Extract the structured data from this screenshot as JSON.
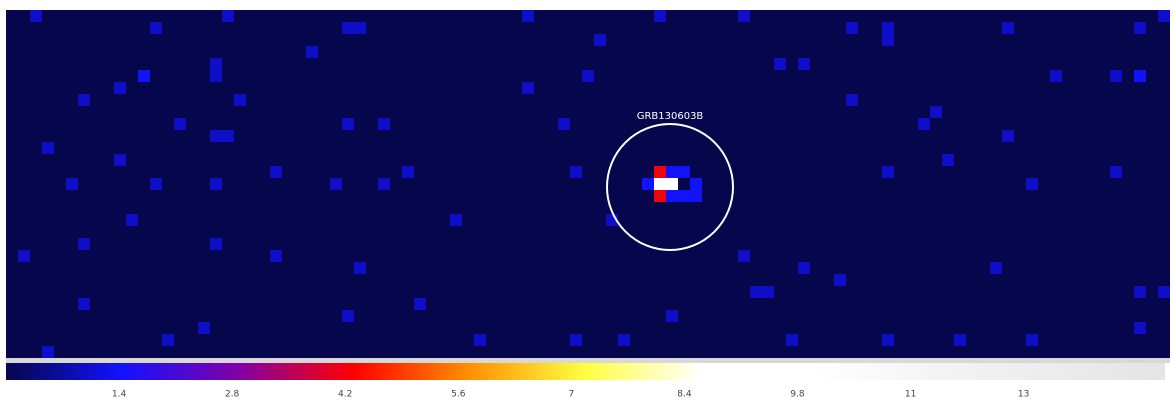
{
  "chart_data": {
    "type": "heatmap",
    "annotation": "GRB130603B",
    "colormap": [
      "#06064c",
      "#1212ff",
      "#8000a8",
      "#ff0000",
      "#ff9000",
      "#ffff40",
      "#ffffff",
      "#ffffff",
      "#f4f4f4",
      "#ececec",
      "#e4e4e4"
    ],
    "clim": [
      0,
      14.35
    ],
    "cticks": [
      1.4,
      2.8,
      4.2,
      5.6,
      7,
      8.4,
      9.8,
      {
        "value": 11.2,
        "label": "11"
      },
      {
        "value": 12.6,
        "label": "13"
      }
    ],
    "pixels": [
      [
        2,
        0,
        1
      ],
      [
        12,
        1,
        1
      ],
      [
        18,
        0,
        1
      ],
      [
        28,
        1,
        1
      ],
      [
        29,
        1,
        1
      ],
      [
        43,
        0,
        1
      ],
      [
        49,
        2,
        1
      ],
      [
        54,
        0,
        1
      ],
      [
        61,
        0,
        1
      ],
      [
        70,
        1,
        1
      ],
      [
        73,
        1,
        1
      ],
      [
        73,
        2,
        1
      ],
      [
        83,
        1,
        1
      ],
      [
        94,
        1,
        1
      ],
      [
        96,
        0,
        1
      ],
      [
        11,
        5,
        1.4
      ],
      [
        17,
        4,
        1
      ],
      [
        17,
        5,
        1
      ],
      [
        9,
        6,
        1
      ],
      [
        6,
        7,
        1
      ],
      [
        19,
        7,
        1
      ],
      [
        25,
        3,
        1
      ],
      [
        43,
        6,
        1
      ],
      [
        48,
        5,
        1
      ],
      [
        66,
        4,
        1
      ],
      [
        64,
        4,
        1
      ],
      [
        70,
        7,
        1
      ],
      [
        87,
        5,
        1
      ],
      [
        92,
        5,
        1
      ],
      [
        94,
        5,
        1.4
      ],
      [
        14,
        9,
        1
      ],
      [
        17,
        10,
        1
      ],
      [
        18,
        10,
        1
      ],
      [
        28,
        9,
        1
      ],
      [
        31,
        9,
        1
      ],
      [
        3,
        11,
        1
      ],
      [
        9,
        12,
        1
      ],
      [
        46,
        9,
        1
      ],
      [
        76,
        9,
        1
      ],
      [
        77,
        8,
        1
      ],
      [
        83,
        10,
        1
      ],
      [
        5,
        14,
        1
      ],
      [
        12,
        14,
        1
      ],
      [
        17,
        14,
        1
      ],
      [
        22,
        13,
        1
      ],
      [
        27,
        14,
        1
      ],
      [
        31,
        14,
        1
      ],
      [
        33,
        13,
        1
      ],
      [
        47,
        13,
        1
      ],
      [
        73,
        13,
        1
      ],
      [
        78,
        12,
        1
      ],
      [
        85,
        14,
        1
      ],
      [
        92,
        13,
        1
      ],
      [
        1,
        20,
        1
      ],
      [
        6,
        19,
        1
      ],
      [
        10,
        17,
        1
      ],
      [
        17,
        19,
        1
      ],
      [
        22,
        20,
        1
      ],
      [
        29,
        21,
        1
      ],
      [
        37,
        17,
        1
      ],
      [
        50,
        17,
        1
      ],
      [
        61,
        20,
        1
      ],
      [
        66,
        21,
        1
      ],
      [
        69,
        22,
        1
      ],
      [
        62,
        23,
        1
      ],
      [
        63,
        23,
        1
      ],
      [
        82,
        21,
        1
      ],
      [
        94,
        23,
        1
      ],
      [
        96,
        23,
        1
      ],
      [
        6,
        24,
        1
      ],
      [
        16,
        26,
        1
      ],
      [
        28,
        25,
        1
      ],
      [
        34,
        24,
        1
      ],
      [
        47,
        27,
        1
      ],
      [
        55,
        25,
        1
      ],
      [
        65,
        27,
        1
      ],
      [
        73,
        27,
        1
      ],
      [
        85,
        27,
        1
      ],
      [
        94,
        26,
        1
      ],
      [
        3,
        28,
        1
      ],
      [
        13,
        27,
        1
      ],
      [
        39,
        27,
        1
      ],
      [
        51,
        27,
        1
      ],
      [
        79,
        27,
        1
      ],
      [
        53,
        14,
        1.4
      ],
      [
        55,
        13,
        1.4
      ],
      [
        56,
        13,
        1.4
      ],
      [
        57,
        14,
        1.4
      ],
      [
        55,
        15,
        1.4
      ],
      [
        56,
        15,
        1.4
      ],
      [
        57,
        15,
        1.4
      ],
      [
        54,
        13,
        4.2
      ],
      [
        54,
        15,
        4.2
      ],
      [
        54,
        14,
        9
      ],
      [
        55,
        14,
        9
      ]
    ]
  }
}
